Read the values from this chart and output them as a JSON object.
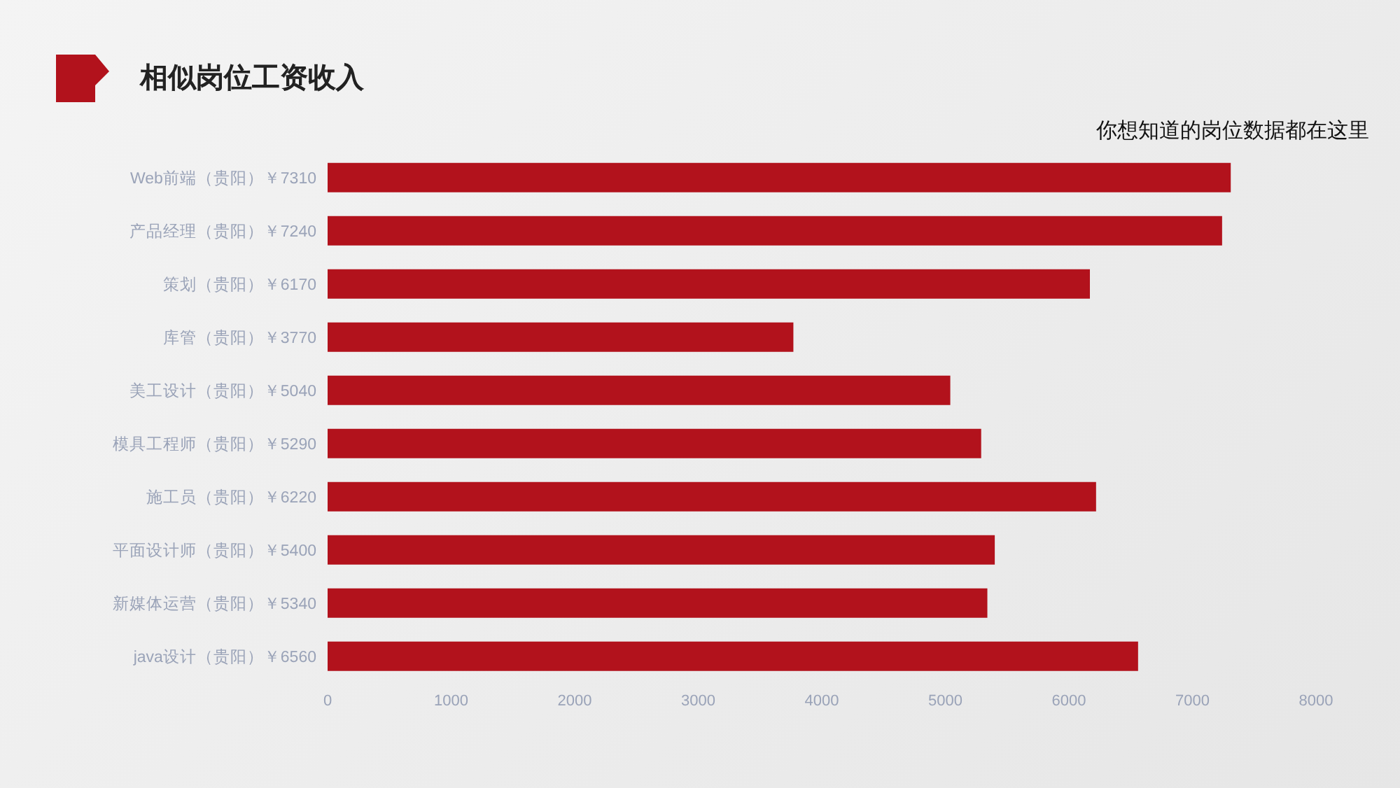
{
  "chart_data": {
    "type": "bar",
    "orientation": "horizontal",
    "title": "相似岗位工资收入",
    "annotations": [
      "你想知道的岗位数据都在这里"
    ],
    "categories": [
      "Web前端（贵阳）￥7310",
      "产品经理（贵阳）￥7240",
      "策划（贵阳）￥6170",
      "库管（贵阳）￥3770",
      "美工设计（贵阳）￥5040",
      "模具工程师（贵阳）￥5290",
      "施工员（贵阳）￥6220",
      "平面设计师（贵阳）￥5400",
      "新媒体运营（贵阳）￥5340",
      "java设计（贵阳）￥6560"
    ],
    "values": [
      7310,
      7240,
      6170,
      3770,
      5040,
      5290,
      6220,
      5400,
      5340,
      6560
    ],
    "color": "#b2121c",
    "xlim": [
      0,
      8000
    ],
    "xticks": [
      0,
      1000,
      2000,
      3000,
      4000,
      5000,
      6000,
      7000,
      8000
    ],
    "grid": false,
    "legend": false
  }
}
